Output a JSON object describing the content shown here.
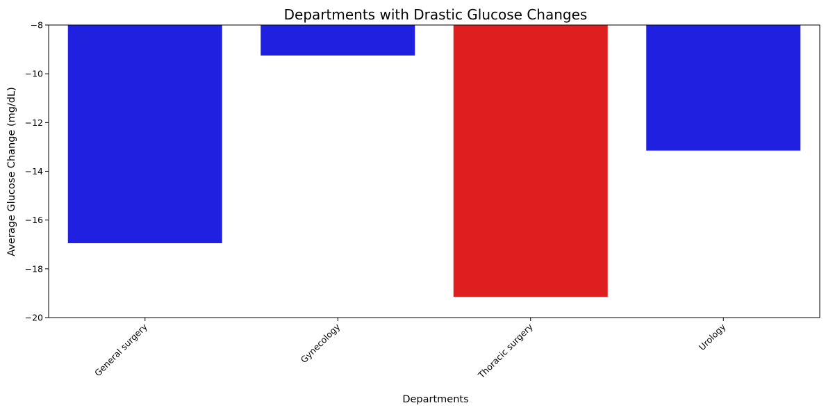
{
  "chart_data": {
    "type": "bar",
    "title": "Departments with Drastic Glucose Changes",
    "xlabel": "Departments",
    "ylabel": "Average Glucose Change (mg/dL)",
    "categories": [
      "General surgery",
      "Gynecology",
      "Thoracic surgery",
      "Urology"
    ],
    "values": [
      -16.95,
      -9.25,
      -19.15,
      -13.15
    ],
    "colors": [
      "#2020e0",
      "#2020e0",
      "#df1f1f",
      "#2020e0"
    ],
    "ylim": [
      -20,
      -8
    ],
    "yticks": [
      -8,
      -10,
      -12,
      -14,
      -16,
      -18,
      -20
    ],
    "ytick_labels": [
      "−8",
      "−10",
      "−12",
      "−14",
      "−16",
      "−18",
      "−20"
    ],
    "grid": false,
    "legend": false
  }
}
